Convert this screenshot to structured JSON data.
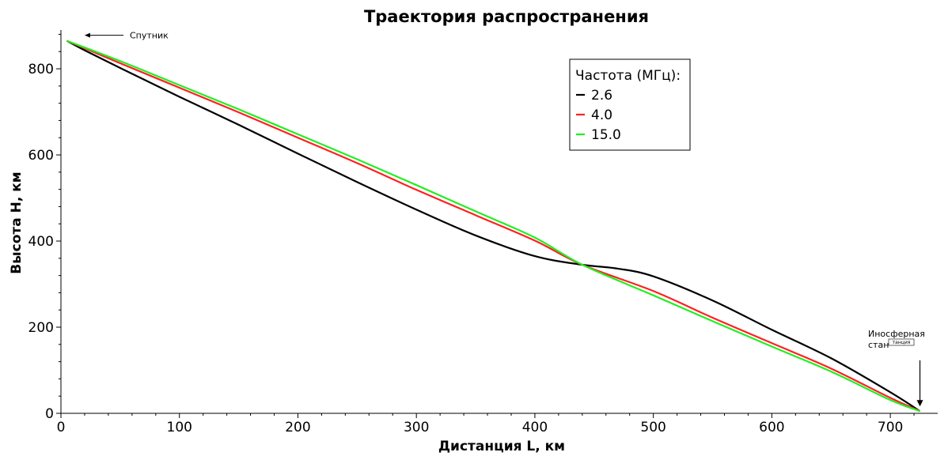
{
  "chart_data": {
    "type": "line",
    "title": "Траектория распространения",
    "xlabel": "Дистанция L, км",
    "ylabel": "Высота Н, км",
    "xlim": [
      0,
      740
    ],
    "ylim": [
      0,
      890
    ],
    "xticks": [
      0,
      100,
      200,
      300,
      400,
      500,
      600,
      700
    ],
    "yticks": [
      0,
      200,
      400,
      600,
      800
    ],
    "grid": false,
    "legend": {
      "title": "Частота (МГц):",
      "placement": "top-center-right"
    },
    "series": [
      {
        "name": "2.6",
        "color": "#000000",
        "x": [
          5,
          20,
          50,
          100,
          150,
          200,
          250,
          300,
          350,
          400,
          440,
          470,
          500,
          550,
          600,
          650,
          700,
          725
        ],
        "y": [
          865,
          843,
          802,
          735,
          670,
          603,
          537,
          473,
          413,
          365,
          345,
          336,
          318,
          262,
          194,
          128,
          49,
          5
        ]
      },
      {
        "name": "4.0",
        "color": "#ff2020",
        "x": [
          5,
          50,
          100,
          150,
          200,
          250,
          300,
          350,
          400,
          440,
          500,
          550,
          600,
          650,
          700,
          725
        ],
        "y": [
          865,
          813,
          756,
          699,
          640,
          581,
          519,
          460,
          401,
          345,
          284,
          222,
          163,
          104,
          36,
          5
        ]
      },
      {
        "name": "15.0",
        "color": "#22ee22",
        "x": [
          5,
          50,
          100,
          150,
          200,
          250,
          300,
          350,
          400,
          440,
          500,
          550,
          600,
          650,
          700,
          725
        ],
        "y": [
          865,
          818,
          762,
          706,
          648,
          590,
          530,
          469,
          408,
          345,
          274,
          214,
          155,
          97,
          31,
          5
        ]
      }
    ],
    "annotations": [
      {
        "text": "Спутник",
        "point": [
          20,
          865
        ]
      },
      {
        "text": "Иносферная",
        "text2": "стан",
        "text3": "танция",
        "point": [
          725,
          5
        ]
      }
    ]
  }
}
